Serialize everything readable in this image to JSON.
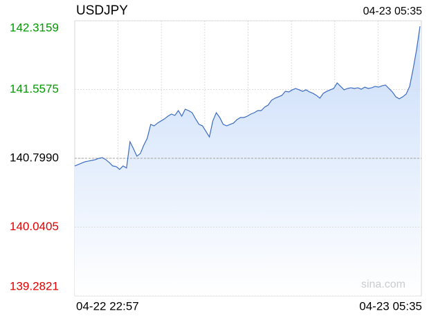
{
  "chart_data": {
    "type": "line",
    "title": "USDJPY",
    "timestamp": "04-23 05:35",
    "watermark": "sina.com",
    "xlabels": [
      "04-22 22:57",
      "04-23 05:35"
    ],
    "ylim": [
      139.2821,
      142.3159
    ],
    "yticks": [
      142.3159,
      141.5575,
      {
        "value": 140.799,
        "label": "140.7990"
      },
      140.0405,
      139.2821
    ],
    "reference_line": 140.799,
    "up_color": "#009900",
    "down_color": "#e00000",
    "flat_color": "#000000",
    "grid": true,
    "series": [
      {
        "name": "USDJPY",
        "color": "#3a6bc4",
        "values": [
          140.715,
          140.73,
          140.746,
          140.761,
          140.769,
          140.776,
          140.784,
          140.799,
          140.807,
          140.784,
          140.753,
          140.715,
          140.708,
          140.677,
          140.715,
          140.692,
          140.982,
          140.906,
          140.822,
          140.852,
          140.944,
          141.02,
          141.173,
          141.157,
          141.188,
          141.211,
          141.234,
          141.264,
          141.287,
          141.272,
          141.325,
          141.264,
          141.34,
          141.325,
          141.302,
          141.234,
          141.173,
          141.157,
          141.096,
          141.035,
          141.211,
          141.302,
          141.249,
          141.173,
          141.157,
          141.173,
          141.188,
          141.226,
          141.249,
          141.249,
          141.264,
          141.287,
          141.302,
          141.325,
          141.325,
          141.363,
          141.386,
          141.439,
          141.462,
          141.477,
          141.493,
          141.538,
          141.531,
          141.554,
          141.569,
          141.554,
          141.538,
          141.554,
          141.531,
          141.516,
          141.493,
          141.462,
          141.516,
          141.538,
          141.554,
          141.569,
          141.63,
          141.592,
          141.554,
          141.569,
          141.577,
          141.569,
          141.577,
          141.561,
          141.584,
          141.569,
          141.577,
          141.592,
          141.584,
          141.599,
          141.607,
          141.569,
          141.531,
          141.477,
          141.455,
          141.477,
          141.508,
          141.592,
          141.782,
          141.996,
          142.255
        ]
      }
    ]
  }
}
